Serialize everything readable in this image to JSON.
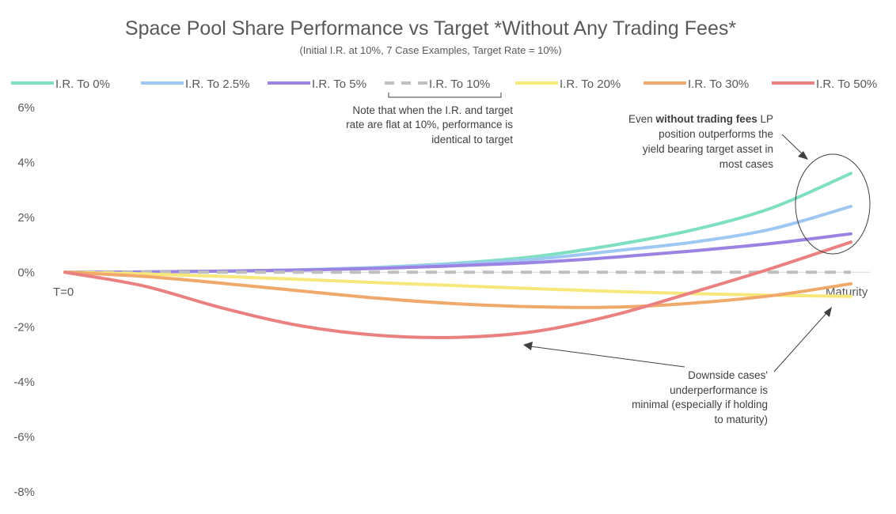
{
  "chart_data": {
    "type": "line",
    "title": "Space Pool Share Performance vs Target *Without Any Trading Fees*",
    "subtitle": "(Initial I.R. at 10%, 7 Case Examples, Target Rate = 10%)",
    "ylim": [
      -8,
      6
    ],
    "yticks": [
      "6%",
      "4%",
      "2%",
      "0%",
      "-2%",
      "-4%",
      "-6%",
      "-8%"
    ],
    "ytick_values": [
      6,
      4,
      2,
      0,
      -2,
      -4,
      -6,
      -8
    ],
    "x_start_label": "T=0",
    "x_end_label": "Maturity",
    "xlim": [
      0,
      10
    ],
    "x": [
      0,
      1,
      2,
      3,
      4,
      5,
      6,
      7,
      8,
      9,
      10
    ],
    "series": [
      {
        "name": "I.R. To 0%",
        "color": "#7fdfc2",
        "dashed": false,
        "values": [
          0,
          0.01,
          0.04,
          0.09,
          0.18,
          0.33,
          0.58,
          1.0,
          1.55,
          2.35,
          3.6
        ]
      },
      {
        "name": "I.R. To 2.5%",
        "color": "#9ec7f2",
        "dashed": false,
        "values": [
          0,
          0.01,
          0.04,
          0.09,
          0.17,
          0.3,
          0.48,
          0.78,
          1.1,
          1.58,
          2.4
        ]
      },
      {
        "name": "I.R. To 5%",
        "color": "#9a83e3",
        "dashed": false,
        "values": [
          0,
          0.01,
          0.04,
          0.08,
          0.14,
          0.24,
          0.36,
          0.55,
          0.78,
          1.05,
          1.4
        ]
      },
      {
        "name": "I.R. To 10%",
        "color": "#bfbfbf",
        "dashed": true,
        "values": [
          0,
          0,
          0,
          0,
          0,
          0,
          0,
          0,
          0,
          0,
          0
        ]
      },
      {
        "name": "I.R. To 20%",
        "color": "#f8e77a",
        "dashed": false,
        "values": [
          0,
          -0.06,
          -0.15,
          -0.26,
          -0.38,
          -0.49,
          -0.6,
          -0.7,
          -0.78,
          -0.84,
          -0.88
        ]
      },
      {
        "name": "I.R. To 30%",
        "color": "#f0a86b",
        "dashed": false,
        "values": [
          0,
          -0.15,
          -0.4,
          -0.68,
          -0.95,
          -1.15,
          -1.26,
          -1.27,
          -1.12,
          -0.85,
          -0.42
        ]
      },
      {
        "name": "I.R. To 50%",
        "color": "#ea8080",
        "dashed": false,
        "values": [
          0,
          -0.5,
          -1.3,
          -1.95,
          -2.3,
          -2.37,
          -2.15,
          -1.55,
          -0.72,
          0.15,
          1.1
        ]
      }
    ],
    "annotations": {
      "flat_note": [
        "Note that when the I.R. and target",
        "rate are flat at 10%, performance is",
        "identical to target"
      ],
      "fees_note": {
        "line1_prefix": "Even ",
        "line1_bold": "without trading fees",
        "line1_suffix": " LP",
        "lines": [
          "position outperforms the",
          "yield bearing target asset in",
          "most cases"
        ]
      },
      "downside_note": [
        "Downside cases'",
        "underperformance is",
        "minimal (especially if holding",
        "to maturity)"
      ]
    },
    "legend_position": "top",
    "grid": false
  }
}
